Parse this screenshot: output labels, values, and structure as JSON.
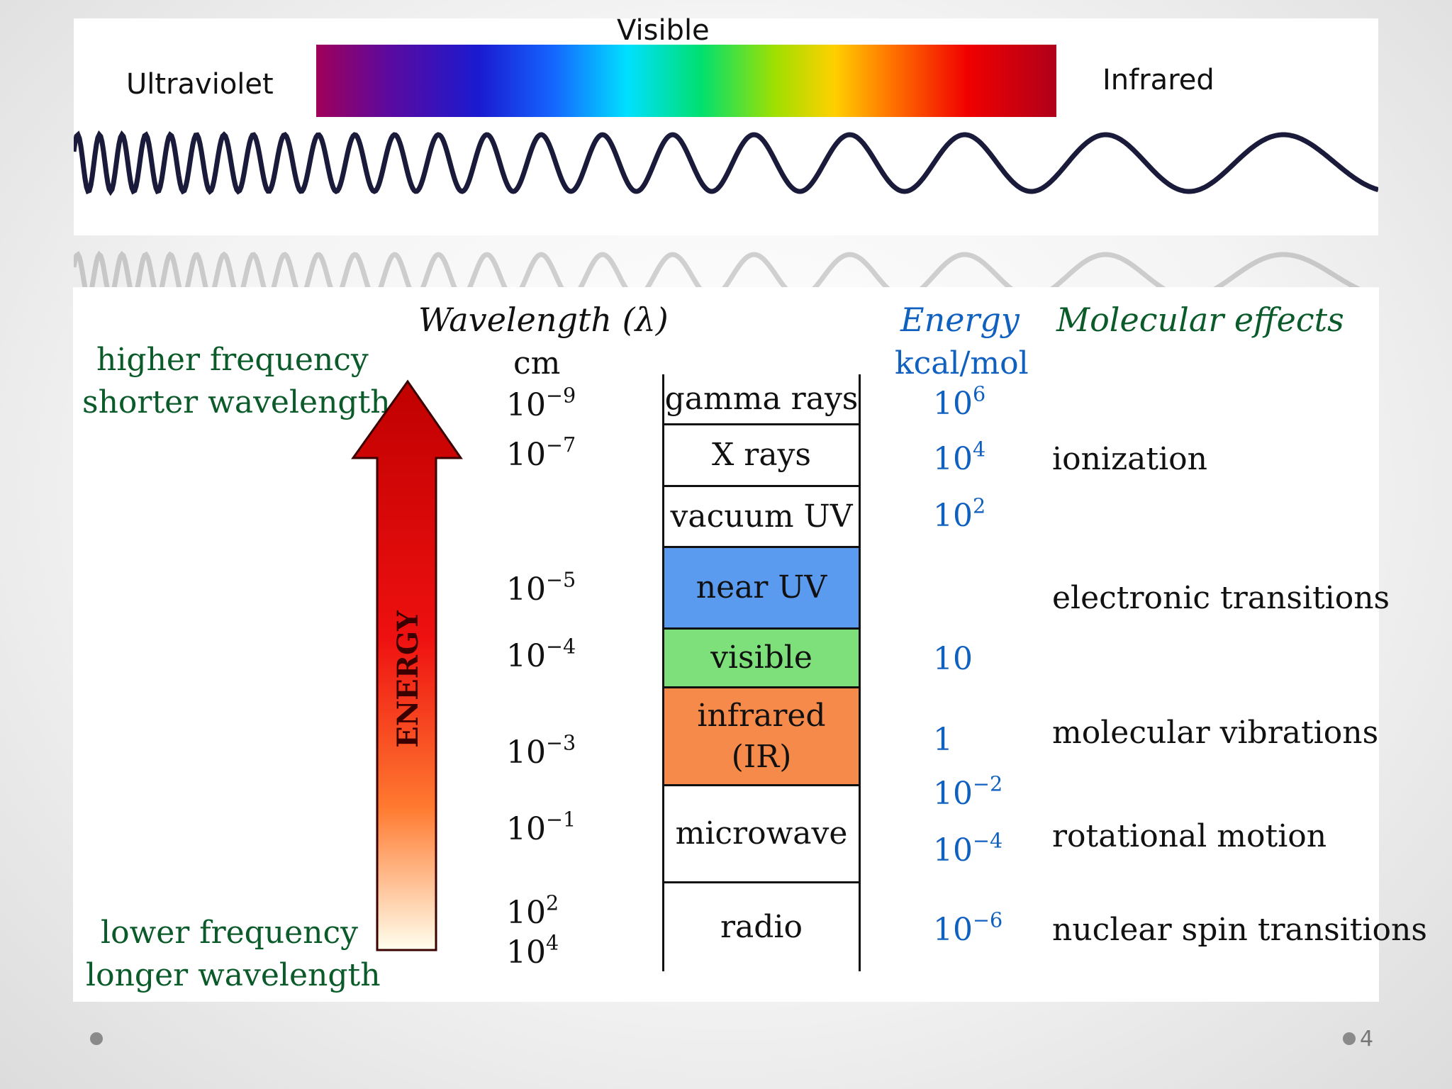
{
  "top": {
    "visible_label": "Visible",
    "ultraviolet_label": "Ultraviolet",
    "infrared_label": "Infrared"
  },
  "headers": {
    "wavelength": "Wavelength (λ)",
    "wavelength_unit": "cm",
    "energy": "Energy",
    "energy_unit": "kcal/mol",
    "molecular_effects": "Molecular effects"
  },
  "left_labels": {
    "top_line1": "higher frequency",
    "top_line2": "shorter wavelength",
    "bottom_line1": "lower frequency",
    "bottom_line2": "longer wavelength",
    "arrow_label": "ENERGY"
  },
  "wavelengths": [
    {
      "base": "10",
      "exp": "−9"
    },
    {
      "base": "10",
      "exp": "−7"
    },
    {
      "base": "10",
      "exp": "−5"
    },
    {
      "base": "10",
      "exp": "−4"
    },
    {
      "base": "10",
      "exp": "−3"
    },
    {
      "base": "10",
      "exp": "−1"
    },
    {
      "base": "10",
      "exp": "2"
    },
    {
      "base": "10",
      "exp": "4"
    }
  ],
  "bands": [
    {
      "label": "gamma rays",
      "color": "#ffffff"
    },
    {
      "label": "X rays",
      "color": "#ffffff"
    },
    {
      "label": "vacuum UV",
      "color": "#ffffff"
    },
    {
      "label": "near UV",
      "color": "#5b9bef"
    },
    {
      "label": "visible",
      "color": "#7de07a"
    },
    {
      "label": "infrared",
      "label2": "(IR)",
      "color": "#f68a4a"
    },
    {
      "label": "microwave",
      "color": "#ffffff"
    },
    {
      "label": "radio",
      "color": "#ffffff"
    }
  ],
  "energies": [
    {
      "base": "10",
      "exp": "6"
    },
    {
      "base": "10",
      "exp": "4"
    },
    {
      "base": "10",
      "exp": "2"
    },
    {
      "base": "10",
      "exp": ""
    },
    {
      "base": "1",
      "exp": ""
    },
    {
      "base": "10",
      "exp": "−2"
    },
    {
      "base": "10",
      "exp": "−4"
    },
    {
      "base": "10",
      "exp": "−6"
    }
  ],
  "effects": [
    "ionization",
    "electronic transitions",
    "molecular vibrations",
    "rotational motion",
    "nuclear spin transitions"
  ],
  "footer": {
    "page_number": "4"
  }
}
